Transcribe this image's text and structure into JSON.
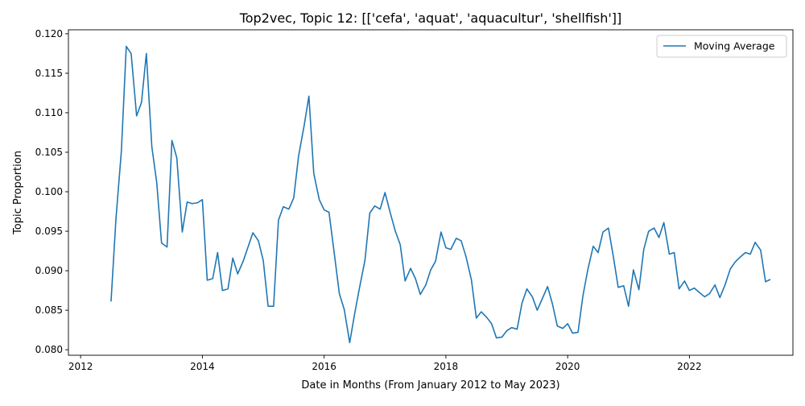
{
  "chart_data": {
    "type": "line",
    "title": "Top2vec, Topic 12: [['cefa', 'aquat', 'aquacultur', 'shellfish']]",
    "xlabel": "Date in Months (From January 2012 to May 2023)",
    "ylabel": "Topic Proportion",
    "xlim": [
      2011.8,
      2023.7
    ],
    "ylim": [
      0.0793,
      0.1205
    ],
    "x_ticks": [
      2012,
      2014,
      2016,
      2018,
      2020,
      2022
    ],
    "y_ticks": [
      0.08,
      0.085,
      0.09,
      0.095,
      0.1,
      0.105,
      0.11,
      0.115,
      0.12
    ],
    "y_tick_labels": [
      "0.080",
      "0.085",
      "0.090",
      "0.095",
      "0.100",
      "0.105",
      "0.110",
      "0.115",
      "0.120"
    ],
    "grid": false,
    "legend": {
      "position": "top-right",
      "entries": [
        "Moving Average"
      ]
    },
    "series": [
      {
        "name": "Moving Average",
        "color": "#1f77b4",
        "points": [
          [
            2012.5,
            0.0861
          ],
          [
            2012.58,
            0.0965
          ],
          [
            2012.67,
            0.1052
          ],
          [
            2012.75,
            0.1184
          ],
          [
            2012.83,
            0.1175
          ],
          [
            2012.92,
            0.1096
          ],
          [
            2013.0,
            0.1113
          ],
          [
            2013.08,
            0.1175
          ],
          [
            2013.17,
            0.1057
          ],
          [
            2013.25,
            0.1012
          ],
          [
            2013.33,
            0.0935
          ],
          [
            2013.42,
            0.093
          ],
          [
            2013.5,
            0.1065
          ],
          [
            2013.58,
            0.1043
          ],
          [
            2013.67,
            0.0949
          ],
          [
            2013.75,
            0.0987
          ],
          [
            2013.83,
            0.0985
          ],
          [
            2013.92,
            0.0986
          ],
          [
            2014.0,
            0.099
          ],
          [
            2014.08,
            0.0888
          ],
          [
            2014.17,
            0.089
          ],
          [
            2014.25,
            0.0923
          ],
          [
            2014.33,
            0.0875
          ],
          [
            2014.42,
            0.0877
          ],
          [
            2014.5,
            0.0916
          ],
          [
            2014.58,
            0.0896
          ],
          [
            2014.67,
            0.0912
          ],
          [
            2014.75,
            0.093
          ],
          [
            2014.83,
            0.0948
          ],
          [
            2014.92,
            0.0938
          ],
          [
            2015.0,
            0.0913
          ],
          [
            2015.08,
            0.0855
          ],
          [
            2015.17,
            0.0855
          ],
          [
            2015.25,
            0.0964
          ],
          [
            2015.33,
            0.0981
          ],
          [
            2015.42,
            0.0978
          ],
          [
            2015.5,
            0.0992
          ],
          [
            2015.58,
            0.1045
          ],
          [
            2015.67,
            0.1083
          ],
          [
            2015.75,
            0.1121
          ],
          [
            2015.83,
            0.1023
          ],
          [
            2015.92,
            0.099
          ],
          [
            2016.0,
            0.0977
          ],
          [
            2016.08,
            0.0974
          ],
          [
            2016.17,
            0.092
          ],
          [
            2016.25,
            0.0871
          ],
          [
            2016.33,
            0.0851
          ],
          [
            2016.42,
            0.0809
          ],
          [
            2016.5,
            0.0845
          ],
          [
            2016.58,
            0.0878
          ],
          [
            2016.67,
            0.0913
          ],
          [
            2016.75,
            0.0973
          ],
          [
            2016.83,
            0.0982
          ],
          [
            2016.92,
            0.0978
          ],
          [
            2017.0,
            0.0999
          ],
          [
            2017.08,
            0.0975
          ],
          [
            2017.17,
            0.095
          ],
          [
            2017.25,
            0.0933
          ],
          [
            2017.33,
            0.0887
          ],
          [
            2017.42,
            0.0903
          ],
          [
            2017.5,
            0.089
          ],
          [
            2017.58,
            0.087
          ],
          [
            2017.67,
            0.0882
          ],
          [
            2017.75,
            0.0901
          ],
          [
            2017.83,
            0.0912
          ],
          [
            2017.92,
            0.0949
          ],
          [
            2018.0,
            0.0929
          ],
          [
            2018.08,
            0.0927
          ],
          [
            2018.17,
            0.0941
          ],
          [
            2018.25,
            0.0938
          ],
          [
            2018.33,
            0.0918
          ],
          [
            2018.42,
            0.0888
          ],
          [
            2018.5,
            0.084
          ],
          [
            2018.58,
            0.0848
          ],
          [
            2018.67,
            0.0841
          ],
          [
            2018.75,
            0.0833
          ],
          [
            2018.83,
            0.0815
          ],
          [
            2018.92,
            0.0816
          ],
          [
            2019.0,
            0.0824
          ],
          [
            2019.08,
            0.0828
          ],
          [
            2019.17,
            0.0826
          ],
          [
            2019.25,
            0.0859
          ],
          [
            2019.33,
            0.0877
          ],
          [
            2019.42,
            0.0867
          ],
          [
            2019.5,
            0.085
          ],
          [
            2019.58,
            0.0864
          ],
          [
            2019.67,
            0.088
          ],
          [
            2019.75,
            0.0858
          ],
          [
            2019.83,
            0.083
          ],
          [
            2019.92,
            0.0827
          ],
          [
            2020.0,
            0.0833
          ],
          [
            2020.08,
            0.0821
          ],
          [
            2020.17,
            0.0822
          ],
          [
            2020.25,
            0.0868
          ],
          [
            2020.33,
            0.0901
          ],
          [
            2020.42,
            0.0931
          ],
          [
            2020.5,
            0.0923
          ],
          [
            2020.58,
            0.0949
          ],
          [
            2020.67,
            0.0954
          ],
          [
            2020.75,
            0.0918
          ],
          [
            2020.83,
            0.0879
          ],
          [
            2020.92,
            0.0881
          ],
          [
            2021.0,
            0.0855
          ],
          [
            2021.08,
            0.0901
          ],
          [
            2021.17,
            0.0876
          ],
          [
            2021.25,
            0.0927
          ],
          [
            2021.33,
            0.095
          ],
          [
            2021.42,
            0.0954
          ],
          [
            2021.5,
            0.0942
          ],
          [
            2021.58,
            0.0961
          ],
          [
            2021.67,
            0.0921
          ],
          [
            2021.75,
            0.0923
          ],
          [
            2021.83,
            0.0877
          ],
          [
            2021.92,
            0.0887
          ],
          [
            2022.0,
            0.0875
          ],
          [
            2022.08,
            0.0878
          ],
          [
            2022.17,
            0.0872
          ],
          [
            2022.25,
            0.0867
          ],
          [
            2022.33,
            0.0871
          ],
          [
            2022.42,
            0.0882
          ],
          [
            2022.5,
            0.0866
          ],
          [
            2022.58,
            0.0881
          ],
          [
            2022.67,
            0.0902
          ],
          [
            2022.75,
            0.0911
          ],
          [
            2022.83,
            0.0917
          ],
          [
            2022.92,
            0.0923
          ],
          [
            2023.0,
            0.0921
          ],
          [
            2023.08,
            0.0936
          ],
          [
            2023.17,
            0.0926
          ],
          [
            2023.25,
            0.0886
          ],
          [
            2023.33,
            0.0889
          ]
        ]
      }
    ]
  }
}
